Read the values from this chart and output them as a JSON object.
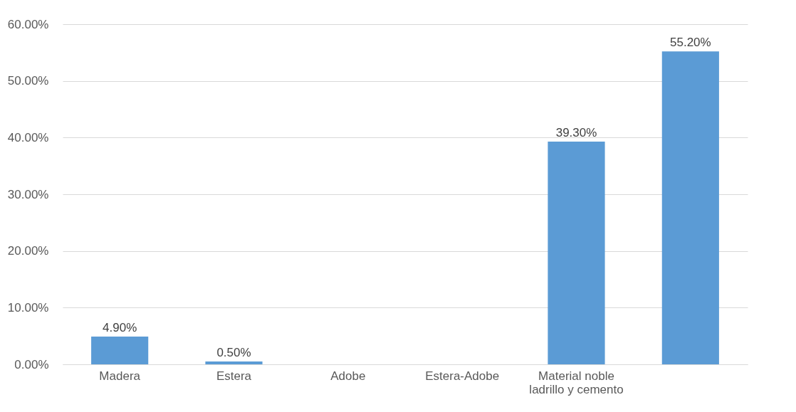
{
  "chart_data": {
    "type": "bar",
    "categories": [
      "Madera",
      "Estera",
      "Adobe",
      "Estera-Adobe",
      "Material noble ladrillo y cemento",
      null
    ],
    "values": [
      4.9,
      0.5,
      0,
      0,
      39.3,
      55.2
    ],
    "value_labels": [
      "4.90%",
      "0.50%",
      null,
      null,
      "39.30%",
      "55.20%"
    ],
    "color": "#5b9bd5",
    "ylim": [
      0,
      60
    ],
    "yticks": [
      {
        "value": 0,
        "label": "0.00%"
      },
      {
        "value": 10,
        "label": "10.00%"
      },
      {
        "value": 20,
        "label": "20.00%"
      },
      {
        "value": 30,
        "label": "30.00%"
      },
      {
        "value": 40,
        "label": "40.00%"
      },
      {
        "value": 50,
        "label": "50.00%"
      },
      {
        "value": 60,
        "label": "60.00%"
      }
    ],
    "grid": "y"
  }
}
